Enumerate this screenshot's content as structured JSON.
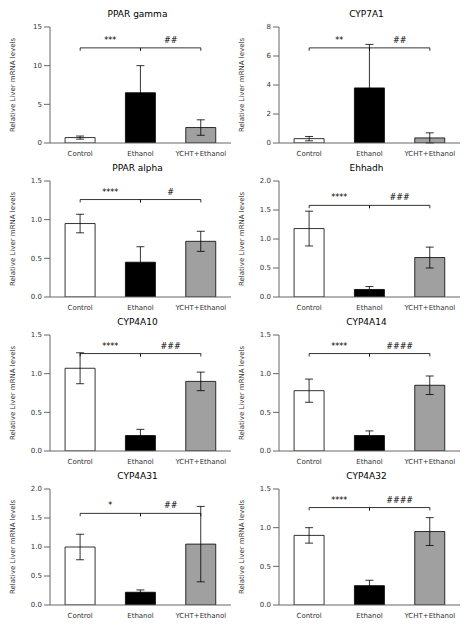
{
  "chart_data": [
    {
      "type": "bar",
      "title": "PPAR gamma",
      "ylabel": "Relative Liver mRNA levels",
      "categories": [
        "Control",
        "Ethanol",
        "YCHT+Ethanol"
      ],
      "values": [
        0.7,
        6.5,
        2.0
      ],
      "errors": [
        0.2,
        3.5,
        1.0
      ],
      "colors": [
        "white",
        "black",
        "#a0a0a0"
      ],
      "ylim": [
        0,
        15
      ],
      "yticks": [
        0,
        5,
        10,
        15
      ],
      "annotations": [
        {
          "x1": "Control",
          "x2": "Ethanol",
          "y": 12.3,
          "label": "***",
          "italic": false
        },
        {
          "x1": "Ethanol",
          "x2": "YCHT+Ethanol",
          "y": 12.3,
          "label": "##",
          "italic": true
        }
      ]
    },
    {
      "type": "bar",
      "title": "CYP7A1",
      "ylabel": "Relative Liver mRNA levels",
      "categories": [
        "Control",
        "Ethanol",
        "YCHT+Ethanol"
      ],
      "values": [
        0.3,
        3.8,
        0.35
      ],
      "errors": [
        0.15,
        3.0,
        0.35
      ],
      "colors": [
        "white",
        "black",
        "#a0a0a0"
      ],
      "ylim": [
        0,
        8
      ],
      "yticks": [
        0,
        2,
        4,
        6,
        8
      ],
      "annotations": [
        {
          "x1": "Control",
          "x2": "Ethanol",
          "y": 6.56,
          "label": "**",
          "italic": false
        },
        {
          "x1": "Ethanol",
          "x2": "YCHT+Ethanol",
          "y": 6.56,
          "label": "##",
          "italic": true
        }
      ]
    },
    {
      "type": "bar",
      "title": "PPAR alpha",
      "ylabel": "Relative Liver mRNA levels",
      "categories": [
        "Control",
        "Ethanol",
        "YCHT+Ethanol"
      ],
      "values": [
        0.95,
        0.45,
        0.72
      ],
      "errors": [
        0.12,
        0.2,
        0.13
      ],
      "colors": [
        "white",
        "black",
        "#a0a0a0"
      ],
      "ylim": [
        0,
        1.5
      ],
      "yticks": [
        {
          "value": 0,
          "label": "0.0"
        },
        {
          "value": 0.5,
          "label": "0.5"
        },
        {
          "value": 1,
          "label": "1.0"
        },
        {
          "value": 1.5,
          "label": "1.5"
        }
      ],
      "annotations": [
        {
          "x1": "Control",
          "x2": "Ethanol",
          "y": 1.26,
          "label": "****",
          "italic": false
        },
        {
          "x1": "Ethanol",
          "x2": "YCHT+Ethanol",
          "y": 1.26,
          "label": "#",
          "italic": true
        }
      ]
    },
    {
      "type": "bar",
      "title": "Ehhadh",
      "ylabel": "Relative Liver mRNA levels",
      "categories": [
        "Control",
        "Ethanol",
        "YCHT+Ethanol"
      ],
      "values": [
        1.18,
        0.13,
        0.68
      ],
      "errors": [
        0.3,
        0.05,
        0.18
      ],
      "colors": [
        "white",
        "black",
        "#a0a0a0"
      ],
      "ylim": [
        0,
        2.0
      ],
      "yticks": [
        {
          "value": 0,
          "label": "0.0"
        },
        {
          "value": 0.5,
          "label": "0.5"
        },
        {
          "value": 1,
          "label": "1.0"
        },
        {
          "value": 1.5,
          "label": "1.5"
        },
        {
          "value": 2,
          "label": "2.0"
        }
      ],
      "annotations": [
        {
          "x1": "Control",
          "x2": "Ethanol",
          "y": 1.58,
          "label": "****",
          "italic": false
        },
        {
          "x1": "Ethanol",
          "x2": "YCHT+Ethanol",
          "y": 1.58,
          "label": "###",
          "italic": true
        }
      ]
    },
    {
      "type": "bar",
      "title": "CYP4A10",
      "ylabel": "Relative Liver mRNA levels",
      "categories": [
        "Control",
        "Ethanol",
        "YCHT+Ethanol"
      ],
      "values": [
        1.07,
        0.2,
        0.9
      ],
      "errors": [
        0.2,
        0.08,
        0.12
      ],
      "colors": [
        "white",
        "black",
        "#a0a0a0"
      ],
      "ylim": [
        0,
        1.5
      ],
      "yticks": [
        {
          "value": 0,
          "label": "0.0"
        },
        {
          "value": 0.5,
          "label": "0.5"
        },
        {
          "value": 1,
          "label": "1.0"
        },
        {
          "value": 1.5,
          "label": "1.5"
        }
      ],
      "annotations": [
        {
          "x1": "Control",
          "x2": "Ethanol",
          "y": 1.26,
          "label": "****",
          "italic": false
        },
        {
          "x1": "Ethanol",
          "x2": "YCHT+Ethanol",
          "y": 1.26,
          "label": "###",
          "italic": true
        }
      ]
    },
    {
      "type": "bar",
      "title": "CYP4A14",
      "ylabel": "Relative Liver mRNA levels",
      "categories": [
        "Control",
        "Ethanol",
        "YCHT+Ethanol"
      ],
      "values": [
        0.78,
        0.2,
        0.85
      ],
      "errors": [
        0.15,
        0.06,
        0.12
      ],
      "colors": [
        "white",
        "black",
        "#a0a0a0"
      ],
      "ylim": [
        0,
        1.5
      ],
      "yticks": [
        {
          "value": 0,
          "label": "0.0"
        },
        {
          "value": 0.5,
          "label": "0.5"
        },
        {
          "value": 1,
          "label": "1.0"
        },
        {
          "value": 1.5,
          "label": "1.5"
        }
      ],
      "annotations": [
        {
          "x1": "Control",
          "x2": "Ethanol",
          "y": 1.26,
          "label": "****",
          "italic": false
        },
        {
          "x1": "Ethanol",
          "x2": "YCHT+Ethanol",
          "y": 1.26,
          "label": "####",
          "italic": true
        }
      ]
    },
    {
      "type": "bar",
      "title": "CYP4A31",
      "ylabel": "Relative Liver mRNA levels",
      "categories": [
        "Control",
        "Ethanol",
        "YCHT+Ethanol"
      ],
      "values": [
        1.0,
        0.22,
        1.05
      ],
      "errors": [
        0.22,
        0.04,
        0.65
      ],
      "colors": [
        "white",
        "black",
        "#a0a0a0"
      ],
      "ylim": [
        0,
        2.0
      ],
      "yticks": [
        {
          "value": 0,
          "label": "0.0"
        },
        {
          "value": 0.5,
          "label": "0.5"
        },
        {
          "value": 1,
          "label": "1.0"
        },
        {
          "value": 1.5,
          "label": "1.5"
        },
        {
          "value": 2,
          "label": "2.0"
        }
      ],
      "annotations": [
        {
          "x1": "Control",
          "x2": "Ethanol",
          "y": 1.58,
          "label": "*",
          "italic": false
        },
        {
          "x1": "Ethanol",
          "x2": "YCHT+Ethanol",
          "y": 1.58,
          "label": "##",
          "italic": true
        }
      ]
    },
    {
      "type": "bar",
      "title": "CYP4A32",
      "ylabel": "Relative Liver mRNA levels",
      "categories": [
        "Control",
        "Ethanol",
        "YCHT+Ethanol"
      ],
      "values": [
        0.9,
        0.25,
        0.95
      ],
      "errors": [
        0.1,
        0.07,
        0.18
      ],
      "colors": [
        "white",
        "black",
        "#a0a0a0"
      ],
      "ylim": [
        0,
        1.5
      ],
      "yticks": [
        {
          "value": 0,
          "label": "0.0"
        },
        {
          "value": 0.5,
          "label": "0.5"
        },
        {
          "value": 1,
          "label": "1.0"
        },
        {
          "value": 1.5,
          "label": "1.5"
        }
      ],
      "annotations": [
        {
          "x1": "Control",
          "x2": "Ethanol",
          "y": 1.26,
          "label": "****",
          "italic": false
        },
        {
          "x1": "Ethanol",
          "x2": "YCHT+Ethanol",
          "y": 1.26,
          "label": "####",
          "italic": true
        }
      ]
    }
  ]
}
